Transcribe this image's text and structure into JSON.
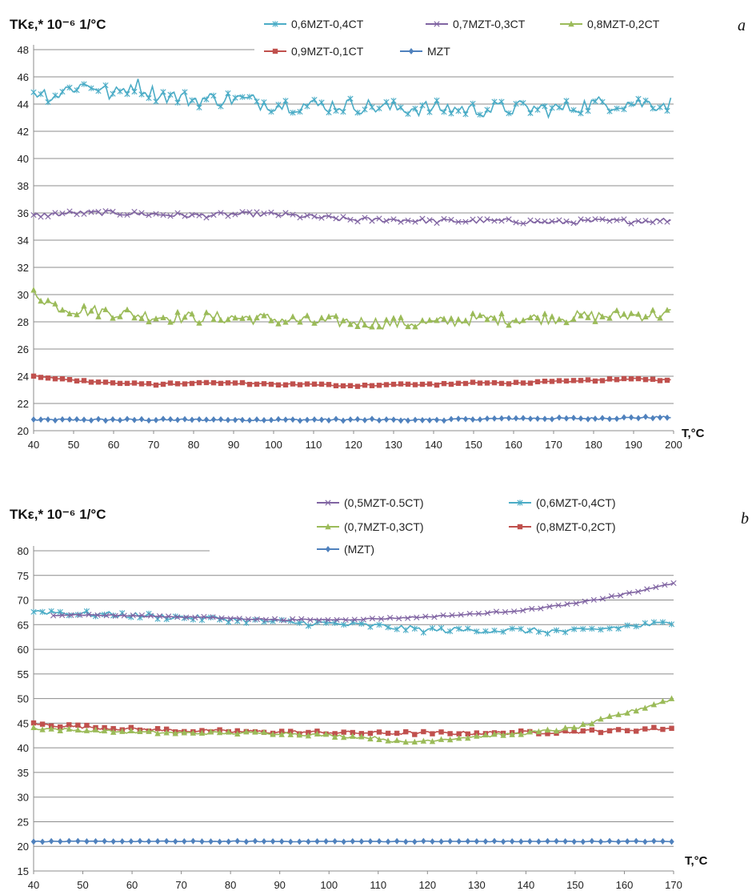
{
  "chart_data": [
    {
      "panel_label": "a",
      "type": "line",
      "ylabel": "TKε,* 10⁻⁶ 1/°C",
      "xlabel": "T,°C",
      "xlim": [
        40,
        200
      ],
      "ylim": [
        20,
        48
      ],
      "x_ticks": [
        40,
        50,
        60,
        70,
        80,
        90,
        100,
        110,
        120,
        130,
        140,
        150,
        160,
        170,
        180,
        190,
        200
      ],
      "y_ticks": [
        20,
        22,
        24,
        26,
        28,
        30,
        32,
        34,
        36,
        38,
        40,
        42,
        44,
        46,
        48
      ],
      "grid": true,
      "legend_position": "top",
      "series": [
        {
          "name": "0,6MZT-0,4CT",
          "color": "#4bacc6",
          "marker": "asterisk",
          "x": [
            40,
            45,
            50,
            55,
            60,
            65,
            70,
            80,
            90,
            100,
            110,
            120,
            130,
            140,
            150,
            160,
            170,
            180,
            190,
            200
          ],
          "y": [
            45.0,
            44.6,
            45.3,
            45.4,
            44.6,
            45.5,
            44.8,
            44.3,
            44.4,
            44.0,
            43.9,
            43.9,
            43.7,
            43.7,
            43.6,
            43.7,
            43.6,
            44.0,
            44.1,
            44.0
          ],
          "noise": 0.6
        },
        {
          "name": "0,7MZT-0,3CT",
          "color": "#8064a2",
          "marker": "x",
          "x": [
            40,
            50,
            60,
            70,
            80,
            90,
            100,
            110,
            120,
            130,
            140,
            150,
            160,
            170,
            180,
            190,
            200
          ],
          "y": [
            35.8,
            36.0,
            36.0,
            35.9,
            35.8,
            35.9,
            35.9,
            35.7,
            35.5,
            35.5,
            35.4,
            35.4,
            35.4,
            35.3,
            35.4,
            35.4,
            35.5
          ],
          "noise": 0.18
        },
        {
          "name": "0,8MZT-0,2CT",
          "color": "#9bbb59",
          "marker": "triangle",
          "x": [
            40,
            45,
            50,
            60,
            70,
            80,
            90,
            100,
            110,
            120,
            130,
            140,
            150,
            160,
            170,
            180,
            190,
            200
          ],
          "y": [
            30.2,
            29.2,
            28.9,
            28.7,
            28.4,
            28.3,
            28.3,
            28.2,
            28.0,
            28.0,
            27.9,
            27.9,
            28.2,
            28.2,
            28.3,
            28.4,
            28.5,
            28.6
          ],
          "noise": 0.45
        },
        {
          "name": "0,9MZT-0,1CT",
          "color": "#c0504d",
          "marker": "square",
          "x": [
            40,
            50,
            60,
            70,
            80,
            90,
            100,
            110,
            120,
            130,
            140,
            150,
            160,
            170,
            180,
            190,
            200
          ],
          "y": [
            24.0,
            23.7,
            23.5,
            23.4,
            23.5,
            23.5,
            23.4,
            23.4,
            23.3,
            23.4,
            23.4,
            23.5,
            23.5,
            23.6,
            23.7,
            23.8,
            23.7
          ],
          "noise": 0.06
        },
        {
          "name": "MZT",
          "color": "#4f81bd",
          "marker": "diamond",
          "x": [
            40,
            60,
            80,
            100,
            120,
            140,
            160,
            180,
            200
          ],
          "y": [
            20.8,
            20.8,
            20.8,
            20.8,
            20.8,
            20.8,
            20.9,
            20.9,
            21.0
          ],
          "noise": 0.07
        }
      ]
    },
    {
      "panel_label": "b",
      "type": "line",
      "ylabel": "TKε,* 10⁻⁶ 1/°C",
      "xlabel": "T,°C",
      "xlim": [
        40,
        170
      ],
      "ylim": [
        15,
        80
      ],
      "x_ticks": [
        40,
        50,
        60,
        70,
        80,
        90,
        100,
        110,
        120,
        130,
        140,
        150,
        160,
        170
      ],
      "y_ticks": [
        15,
        20,
        25,
        30,
        35,
        40,
        45,
        50,
        55,
        60,
        65,
        70,
        75,
        80
      ],
      "grid": true,
      "legend_position": "top",
      "series": [
        {
          "name": "(0,5MZT-0.5CT)",
          "color": "#8064a2",
          "marker": "x",
          "x": [
            44,
            50,
            60,
            70,
            80,
            90,
            100,
            110,
            120,
            130,
            140,
            150,
            155,
            160,
            165,
            170
          ],
          "y": [
            67.0,
            67.0,
            66.8,
            66.6,
            66.3,
            66.0,
            66.0,
            66.2,
            66.6,
            67.2,
            68.0,
            69.3,
            70.2,
            71.2,
            72.2,
            73.5
          ],
          "noise": 0.15
        },
        {
          "name": "(0,6MZT-0,4CT)",
          "color": "#4bacc6",
          "marker": "asterisk",
          "x": [
            40,
            45,
            50,
            60,
            70,
            80,
            90,
            100,
            110,
            120,
            130,
            140,
            150,
            160,
            170
          ],
          "y": [
            67.8,
            67.5,
            67.2,
            66.9,
            66.5,
            66.1,
            65.5,
            65.2,
            64.7,
            63.9,
            63.9,
            63.8,
            63.6,
            64.6,
            65.3
          ],
          "noise": 0.6
        },
        {
          "name": "(0,7MZT-0,3CT)",
          "color": "#9bbb59",
          "marker": "triangle",
          "x": [
            40,
            50,
            60,
            70,
            80,
            90,
            100,
            110,
            115,
            120,
            130,
            140,
            150,
            155,
            160,
            165,
            170
          ],
          "y": [
            44.0,
            43.5,
            43.2,
            43.0,
            43.0,
            43.0,
            42.5,
            42.0,
            41.0,
            41.5,
            42.3,
            43.0,
            44.0,
            45.5,
            47.0,
            48.5,
            50.0
          ],
          "noise": 0.3
        },
        {
          "name": "(0,8MZT-0,2CT)",
          "color": "#c0504d",
          "marker": "square",
          "x": [
            40,
            50,
            60,
            70,
            80,
            90,
            100,
            110,
            120,
            130,
            140,
            150,
            160,
            170
          ],
          "y": [
            44.8,
            44.3,
            43.8,
            43.5,
            43.3,
            43.2,
            43.1,
            43.0,
            43.0,
            43.0,
            43.1,
            43.3,
            43.6,
            44.0
          ],
          "noise": 0.35
        },
        {
          "name": "(MZT)",
          "color": "#4f81bd",
          "marker": "diamond",
          "x": [
            40,
            170
          ],
          "y": [
            21.0,
            21.0
          ],
          "noise": 0.08
        }
      ]
    }
  ]
}
